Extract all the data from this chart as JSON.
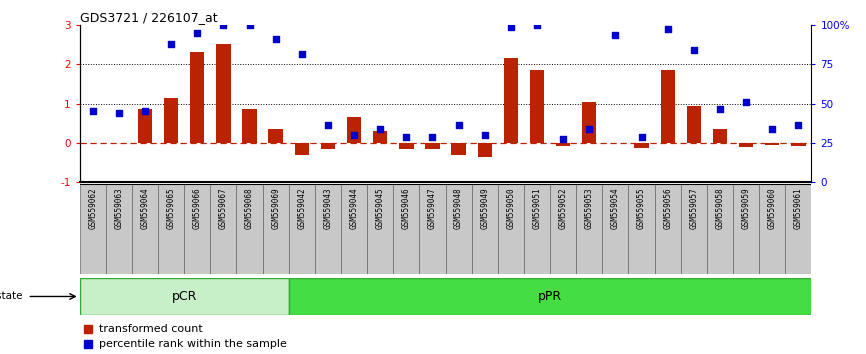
{
  "title": "GDS3721 / 226107_at",
  "samples": [
    "GSM559062",
    "GSM559063",
    "GSM559064",
    "GSM559065",
    "GSM559066",
    "GSM559067",
    "GSM559068",
    "GSM559069",
    "GSM559042",
    "GSM559043",
    "GSM559044",
    "GSM559045",
    "GSM559046",
    "GSM559047",
    "GSM559048",
    "GSM559049",
    "GSM559050",
    "GSM559051",
    "GSM559052",
    "GSM559053",
    "GSM559054",
    "GSM559055",
    "GSM559056",
    "GSM559057",
    "GSM559058",
    "GSM559059",
    "GSM559060",
    "GSM559061"
  ],
  "bar_values": [
    0.01,
    -0.01,
    0.85,
    1.15,
    2.3,
    2.5,
    0.85,
    0.35,
    -0.3,
    -0.15,
    0.65,
    0.3,
    -0.15,
    -0.15,
    -0.3,
    -0.35,
    2.15,
    1.85,
    -0.08,
    1.05,
    0.0,
    -0.12,
    1.85,
    0.95,
    0.35,
    -0.1,
    -0.05,
    -0.08
  ],
  "dot_values": [
    0.8,
    0.75,
    0.8,
    2.5,
    2.8,
    3.0,
    3.0,
    2.65,
    2.25,
    0.45,
    0.2,
    0.35,
    0.15,
    0.15,
    0.45,
    0.2,
    2.95,
    3.0,
    0.1,
    0.35,
    2.75,
    0.15,
    2.9,
    2.35,
    0.85,
    1.05,
    0.35,
    0.45
  ],
  "pCR_count": 8,
  "pPR_count": 20,
  "bar_color": "#BB2200",
  "dot_color": "#0000CC",
  "zero_line_color": "#BB2200",
  "pCR_fill": "#C8F0C8",
  "pPR_fill": "#44DD44",
  "label_bg_color": "#C8C8C8",
  "ylim_left": [
    -1,
    3
  ],
  "yticks_left": [
    -1,
    0,
    1,
    2,
    3
  ],
  "yticks_right": [
    0,
    25,
    50,
    75,
    100
  ],
  "ytick_right_labels": [
    "0",
    "25",
    "50",
    "75",
    "100%"
  ],
  "bar_width": 0.55
}
